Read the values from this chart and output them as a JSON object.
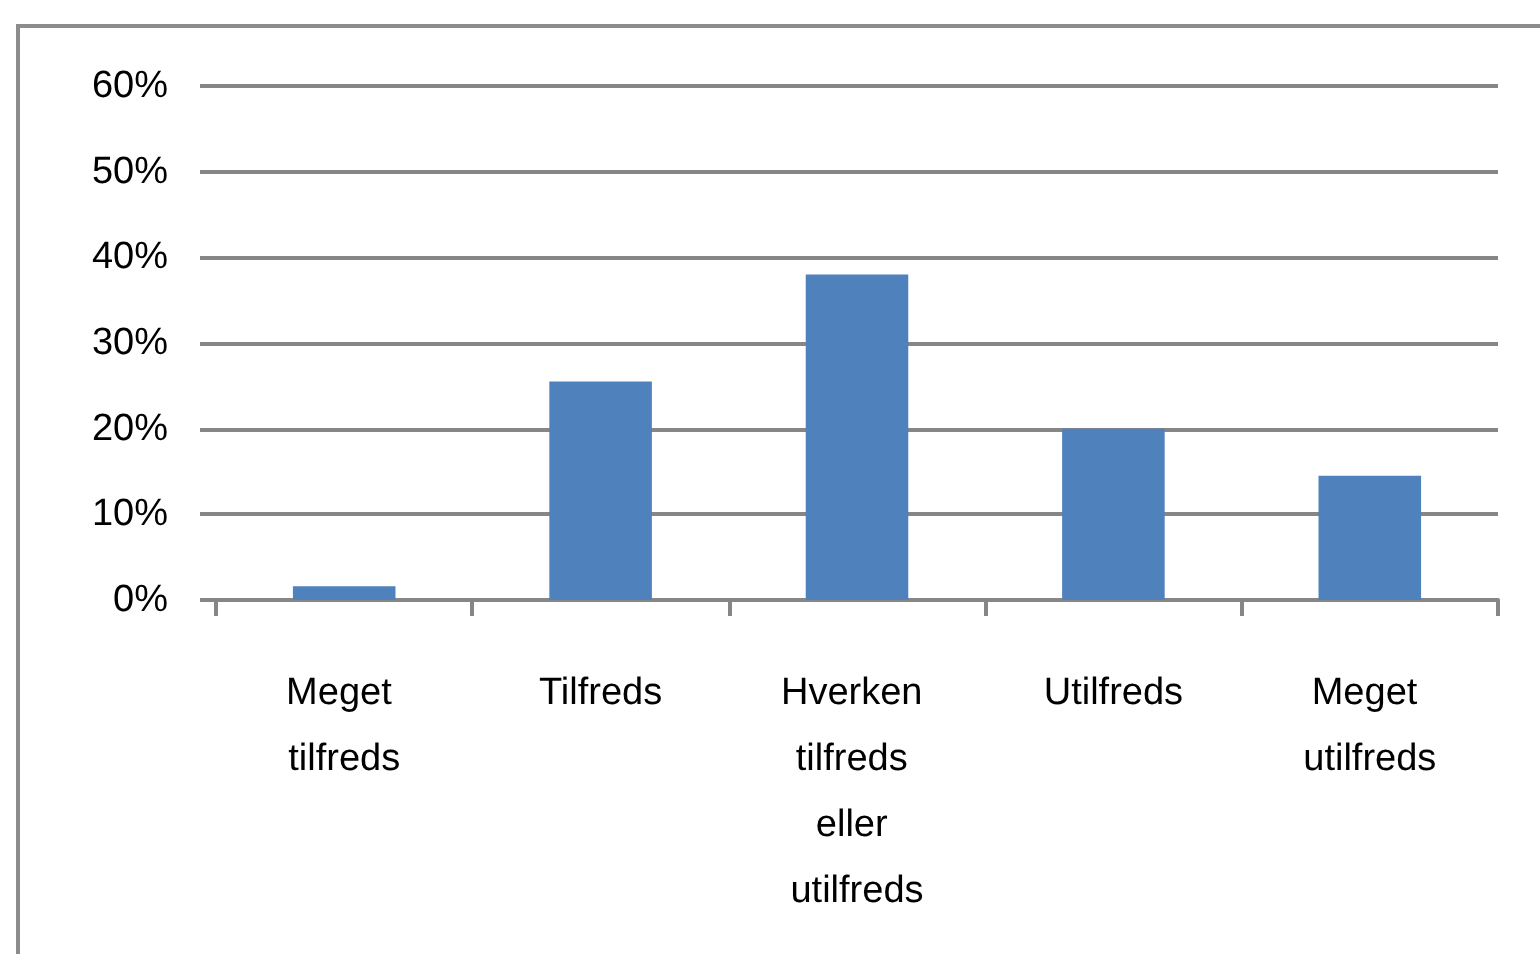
{
  "chart_data": {
    "type": "bar",
    "categories": [
      "Meget tilfreds",
      "Tilfreds",
      "Hverken tilfreds eller utilfreds",
      "Utilfreds",
      "Meget utilfreds"
    ],
    "values": [
      1.6,
      25.5,
      38,
      20,
      14.5
    ],
    "color": "#4f81bd",
    "ylim": [
      0,
      60
    ],
    "yticks": [
      {
        "value": 0,
        "label": "0%"
      },
      {
        "value": 10,
        "label": "10%"
      },
      {
        "value": 20,
        "label": "20%"
      },
      {
        "value": 30,
        "label": "30%"
      },
      {
        "value": 40,
        "label": "40%"
      },
      {
        "value": 50,
        "label": "50%"
      },
      {
        "value": 60,
        "label": "60%"
      }
    ],
    "grid": "y"
  }
}
